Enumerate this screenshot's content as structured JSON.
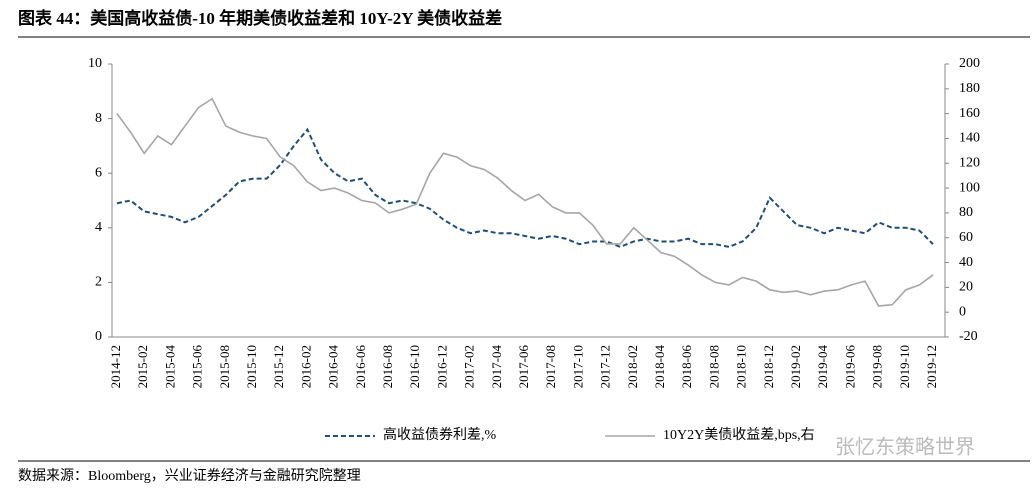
{
  "chart_data": {
    "type": "line",
    "title": "图表 44：美国高收益债-10 年期美债收益差和 10Y-2Y 美债收益差",
    "source": "数据来源：Bloomberg，兴业证券经济与金融研究院整理",
    "watermark": "张忆东策略世界",
    "categories": [
      "2014-12",
      null,
      "2015-02",
      null,
      "2015-04",
      null,
      "2015-06",
      null,
      "2015-08",
      null,
      "2015-10",
      null,
      "2015-12",
      null,
      "2016-02",
      null,
      "2016-04",
      null,
      "2016-06",
      null,
      "2016-08",
      null,
      "2016-10",
      null,
      "2016-12",
      null,
      "2017-02",
      null,
      "2017-04",
      null,
      "2017-06",
      null,
      "2017-08",
      null,
      "2017-10",
      null,
      "2017-12",
      null,
      "2018-02",
      null,
      "2018-04",
      null,
      "2018-06",
      null,
      "2018-08",
      null,
      "2018-10",
      null,
      "2018-12",
      null,
      "2019-02",
      null,
      "2019-04",
      null,
      "2019-06",
      null,
      "2019-08",
      null,
      "2019-10",
      null,
      "2019-12"
    ],
    "series": [
      {
        "name": "高收益债券利差,%",
        "color": "#1f4e79",
        "dash": true,
        "values": [
          4.9,
          5.0,
          4.6,
          4.5,
          4.4,
          4.2,
          4.4,
          4.8,
          5.2,
          5.7,
          5.8,
          5.8,
          6.3,
          7.0,
          7.6,
          6.5,
          6.0,
          5.7,
          5.8,
          5.2,
          4.9,
          5.0,
          4.9,
          4.7,
          4.3,
          4.0,
          3.8,
          3.9,
          3.8,
          3.8,
          3.7,
          3.6,
          3.7,
          3.6,
          3.4,
          3.5,
          3.5,
          3.3,
          3.5,
          3.6,
          3.5,
          3.5,
          3.6,
          3.4,
          3.4,
          3.3,
          3.5,
          4.0,
          5.1,
          4.6,
          4.1,
          4.0,
          3.8,
          4.0,
          3.9,
          3.8,
          4.2,
          4.0,
          4.0,
          3.9,
          3.4
        ]
      },
      {
        "name": "10Y2Y美债收益差,bps,右",
        "color": "#a6a6a6",
        "axis": "y2",
        "values": [
          160,
          145,
          128,
          142,
          135,
          150,
          165,
          172,
          150,
          145,
          142,
          140,
          125,
          118,
          105,
          98,
          100,
          96,
          90,
          88,
          80,
          83,
          87,
          112,
          128,
          125,
          118,
          115,
          108,
          98,
          90,
          95,
          85,
          80,
          80,
          70,
          55,
          55,
          68,
          58,
          48,
          45,
          38,
          30,
          24,
          22,
          28,
          25,
          18,
          16,
          17,
          14,
          17,
          18,
          22,
          25,
          5,
          6,
          18,
          22,
          30
        ]
      }
    ],
    "ylim": [
      0,
      10
    ],
    "yticks": [
      0,
      2,
      4,
      6,
      8,
      10
    ],
    "y2lim": [
      -20,
      200
    ],
    "y2ticks": [
      -20,
      0,
      20,
      40,
      60,
      80,
      100,
      120,
      140,
      160,
      180,
      200
    ]
  }
}
